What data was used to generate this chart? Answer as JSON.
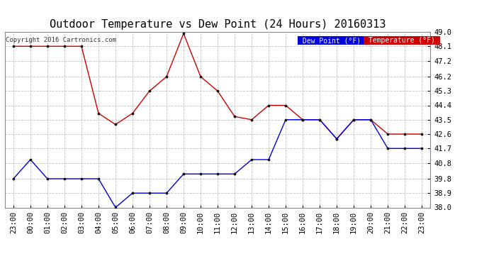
{
  "title": "Outdoor Temperature vs Dew Point (24 Hours) 20160313",
  "copyright": "Copyright 2016 Cartronics.com",
  "legend_dew": "Dew Point (°F)",
  "legend_temp": "Temperature (°F)",
  "x_labels": [
    "23:00",
    "00:00",
    "01:00",
    "02:00",
    "03:00",
    "04:00",
    "05:00",
    "06:00",
    "07:00",
    "08:00",
    "09:00",
    "10:00",
    "11:00",
    "12:00",
    "13:00",
    "14:00",
    "15:00",
    "16:00",
    "17:00",
    "18:00",
    "19:00",
    "20:00",
    "21:00",
    "22:00",
    "23:00"
  ],
  "temperature": [
    48.1,
    48.1,
    48.1,
    48.1,
    48.1,
    43.9,
    43.2,
    43.9,
    45.3,
    46.2,
    48.9,
    46.2,
    45.3,
    43.7,
    43.5,
    44.4,
    44.4,
    43.5,
    43.5,
    42.3,
    43.5,
    43.5,
    42.6,
    42.6,
    42.6
  ],
  "dew_point": [
    39.8,
    41.0,
    39.8,
    39.8,
    39.8,
    39.8,
    38.0,
    38.9,
    38.9,
    38.9,
    40.1,
    40.1,
    40.1,
    40.1,
    41.0,
    41.0,
    43.5,
    43.5,
    43.5,
    42.3,
    43.5,
    43.5,
    41.7,
    41.7,
    41.7
  ],
  "ylim": [
    38.0,
    49.0
  ],
  "yticks": [
    38.0,
    38.9,
    39.8,
    40.8,
    41.7,
    42.6,
    43.5,
    44.4,
    45.3,
    46.2,
    47.2,
    48.1,
    49.0
  ],
  "temp_color": "#cc0000",
  "dew_color": "#0000dd",
  "bg_color": "#ffffff",
  "grid_color": "#bbbbbb",
  "title_fontsize": 11,
  "tick_fontsize": 7.5,
  "marker_color": "#111111"
}
